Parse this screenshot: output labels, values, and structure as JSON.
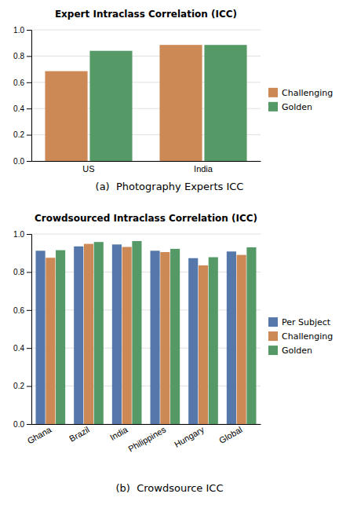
{
  "chart_data": [
    {
      "type": "bar",
      "title": "Expert Intraclass Correlation (ICC)",
      "caption": "(a)  Photography Experts ICC",
      "categories": [
        "US",
        "India"
      ],
      "series": [
        {
          "name": "Challenging",
          "color": "#cc8855",
          "values": [
            0.685,
            0.885
          ]
        },
        {
          "name": "Golden",
          "color": "#559966",
          "values": [
            0.84,
            0.885
          ]
        }
      ],
      "ylim": [
        0.0,
        1.0
      ],
      "yticks": [
        {
          "value": 0.0,
          "label": "0.0"
        },
        0.2,
        0.4,
        0.6,
        0.8,
        {
          "value": 1.0,
          "label": "1.0"
        }
      ],
      "grid": true,
      "legend": "right"
    },
    {
      "type": "bar",
      "title": "Crowdsourced Intraclass Correlation (ICC)",
      "caption": "(b)  Crowdsource ICC",
      "categories": [
        "Ghana",
        "Brazil",
        "India",
        "Philippines",
        "Hungary",
        "Global"
      ],
      "series": [
        {
          "name": "Per Subject",
          "color": "#5577aa",
          "values": [
            0.912,
            0.935,
            0.945,
            0.912,
            0.873,
            0.908
          ]
        },
        {
          "name": "Challenging",
          "color": "#cc8855",
          "values": [
            0.875,
            0.948,
            0.932,
            0.905,
            0.835,
            0.89
          ]
        },
        {
          "name": "Golden",
          "color": "#559966",
          "values": [
            0.915,
            0.958,
            0.963,
            0.922,
            0.878,
            0.93
          ]
        }
      ],
      "ylim": [
        0.0,
        1.0
      ],
      "yticks": [
        {
          "value": 0.0,
          "label": "0.0"
        },
        0.2,
        0.4,
        0.6,
        0.8,
        {
          "value": 1.0,
          "label": "1.0"
        }
      ],
      "grid": true,
      "legend": "right"
    }
  ]
}
